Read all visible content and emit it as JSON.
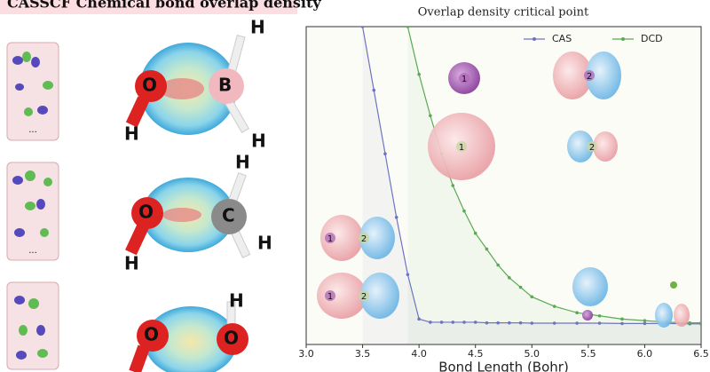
{
  "header": {
    "title": "CASSCF Chemical bond overlap density"
  },
  "molecules": [
    {
      "atoms": [
        "H",
        "O",
        "B",
        "H",
        "H"
      ]
    },
    {
      "atoms": [
        "H",
        "O",
        "C",
        "H",
        "H"
      ]
    },
    {
      "atoms": [
        "O",
        "O",
        "H"
      ]
    }
  ],
  "ellipsis": "...",
  "orbital_labels": [
    "1",
    "1",
    "2",
    "2",
    "1",
    "2",
    "1",
    "2"
  ],
  "chart_data": {
    "type": "line",
    "title": "Overlap density critical point",
    "xlabel": "Bond Length (Bohr)",
    "xlim": [
      3.0,
      6.5
    ],
    "xticks": [
      {
        "value": 3.0,
        "label": "3.0"
      },
      3.5,
      {
        "value": 4.0,
        "label": "4.0"
      },
      4.5,
      {
        "value": 5.0,
        "label": "5.0"
      },
      5.5,
      {
        "value": 6.0,
        "label": "6.0"
      },
      6.5
    ],
    "ylim": [
      0,
      1
    ],
    "legend": "upper right",
    "series": [
      {
        "name": "CAS",
        "color": "#6f72c2",
        "x": [
          3.5,
          3.6,
          3.7,
          3.8,
          3.9,
          4.0,
          4.1,
          4.2,
          4.3,
          4.4,
          4.5,
          4.6,
          4.7,
          4.8,
          4.9,
          5.0,
          5.2,
          5.4,
          5.6,
          5.8,
          6.0,
          6.2,
          6.4,
          6.5
        ],
        "values": [
          1.0,
          0.8,
          0.6,
          0.4,
          0.22,
          0.08,
          0.07,
          0.07,
          0.07,
          0.07,
          0.07,
          0.068,
          0.068,
          0.068,
          0.068,
          0.067,
          0.067,
          0.067,
          0.067,
          0.066,
          0.066,
          0.066,
          0.065,
          0.065
        ]
      },
      {
        "name": "DCD",
        "color": "#5aaa55",
        "x": [
          3.9,
          4.0,
          4.1,
          4.2,
          4.3,
          4.4,
          4.5,
          4.6,
          4.7,
          4.8,
          4.9,
          5.0,
          5.2,
          5.4,
          5.6,
          5.8,
          6.0,
          6.2,
          6.4,
          6.5
        ],
        "values": [
          1.0,
          0.85,
          0.72,
          0.6,
          0.5,
          0.42,
          0.35,
          0.3,
          0.25,
          0.21,
          0.18,
          0.15,
          0.12,
          0.1,
          0.09,
          0.08,
          0.075,
          0.07,
          0.068,
          0.068
        ]
      }
    ]
  }
}
